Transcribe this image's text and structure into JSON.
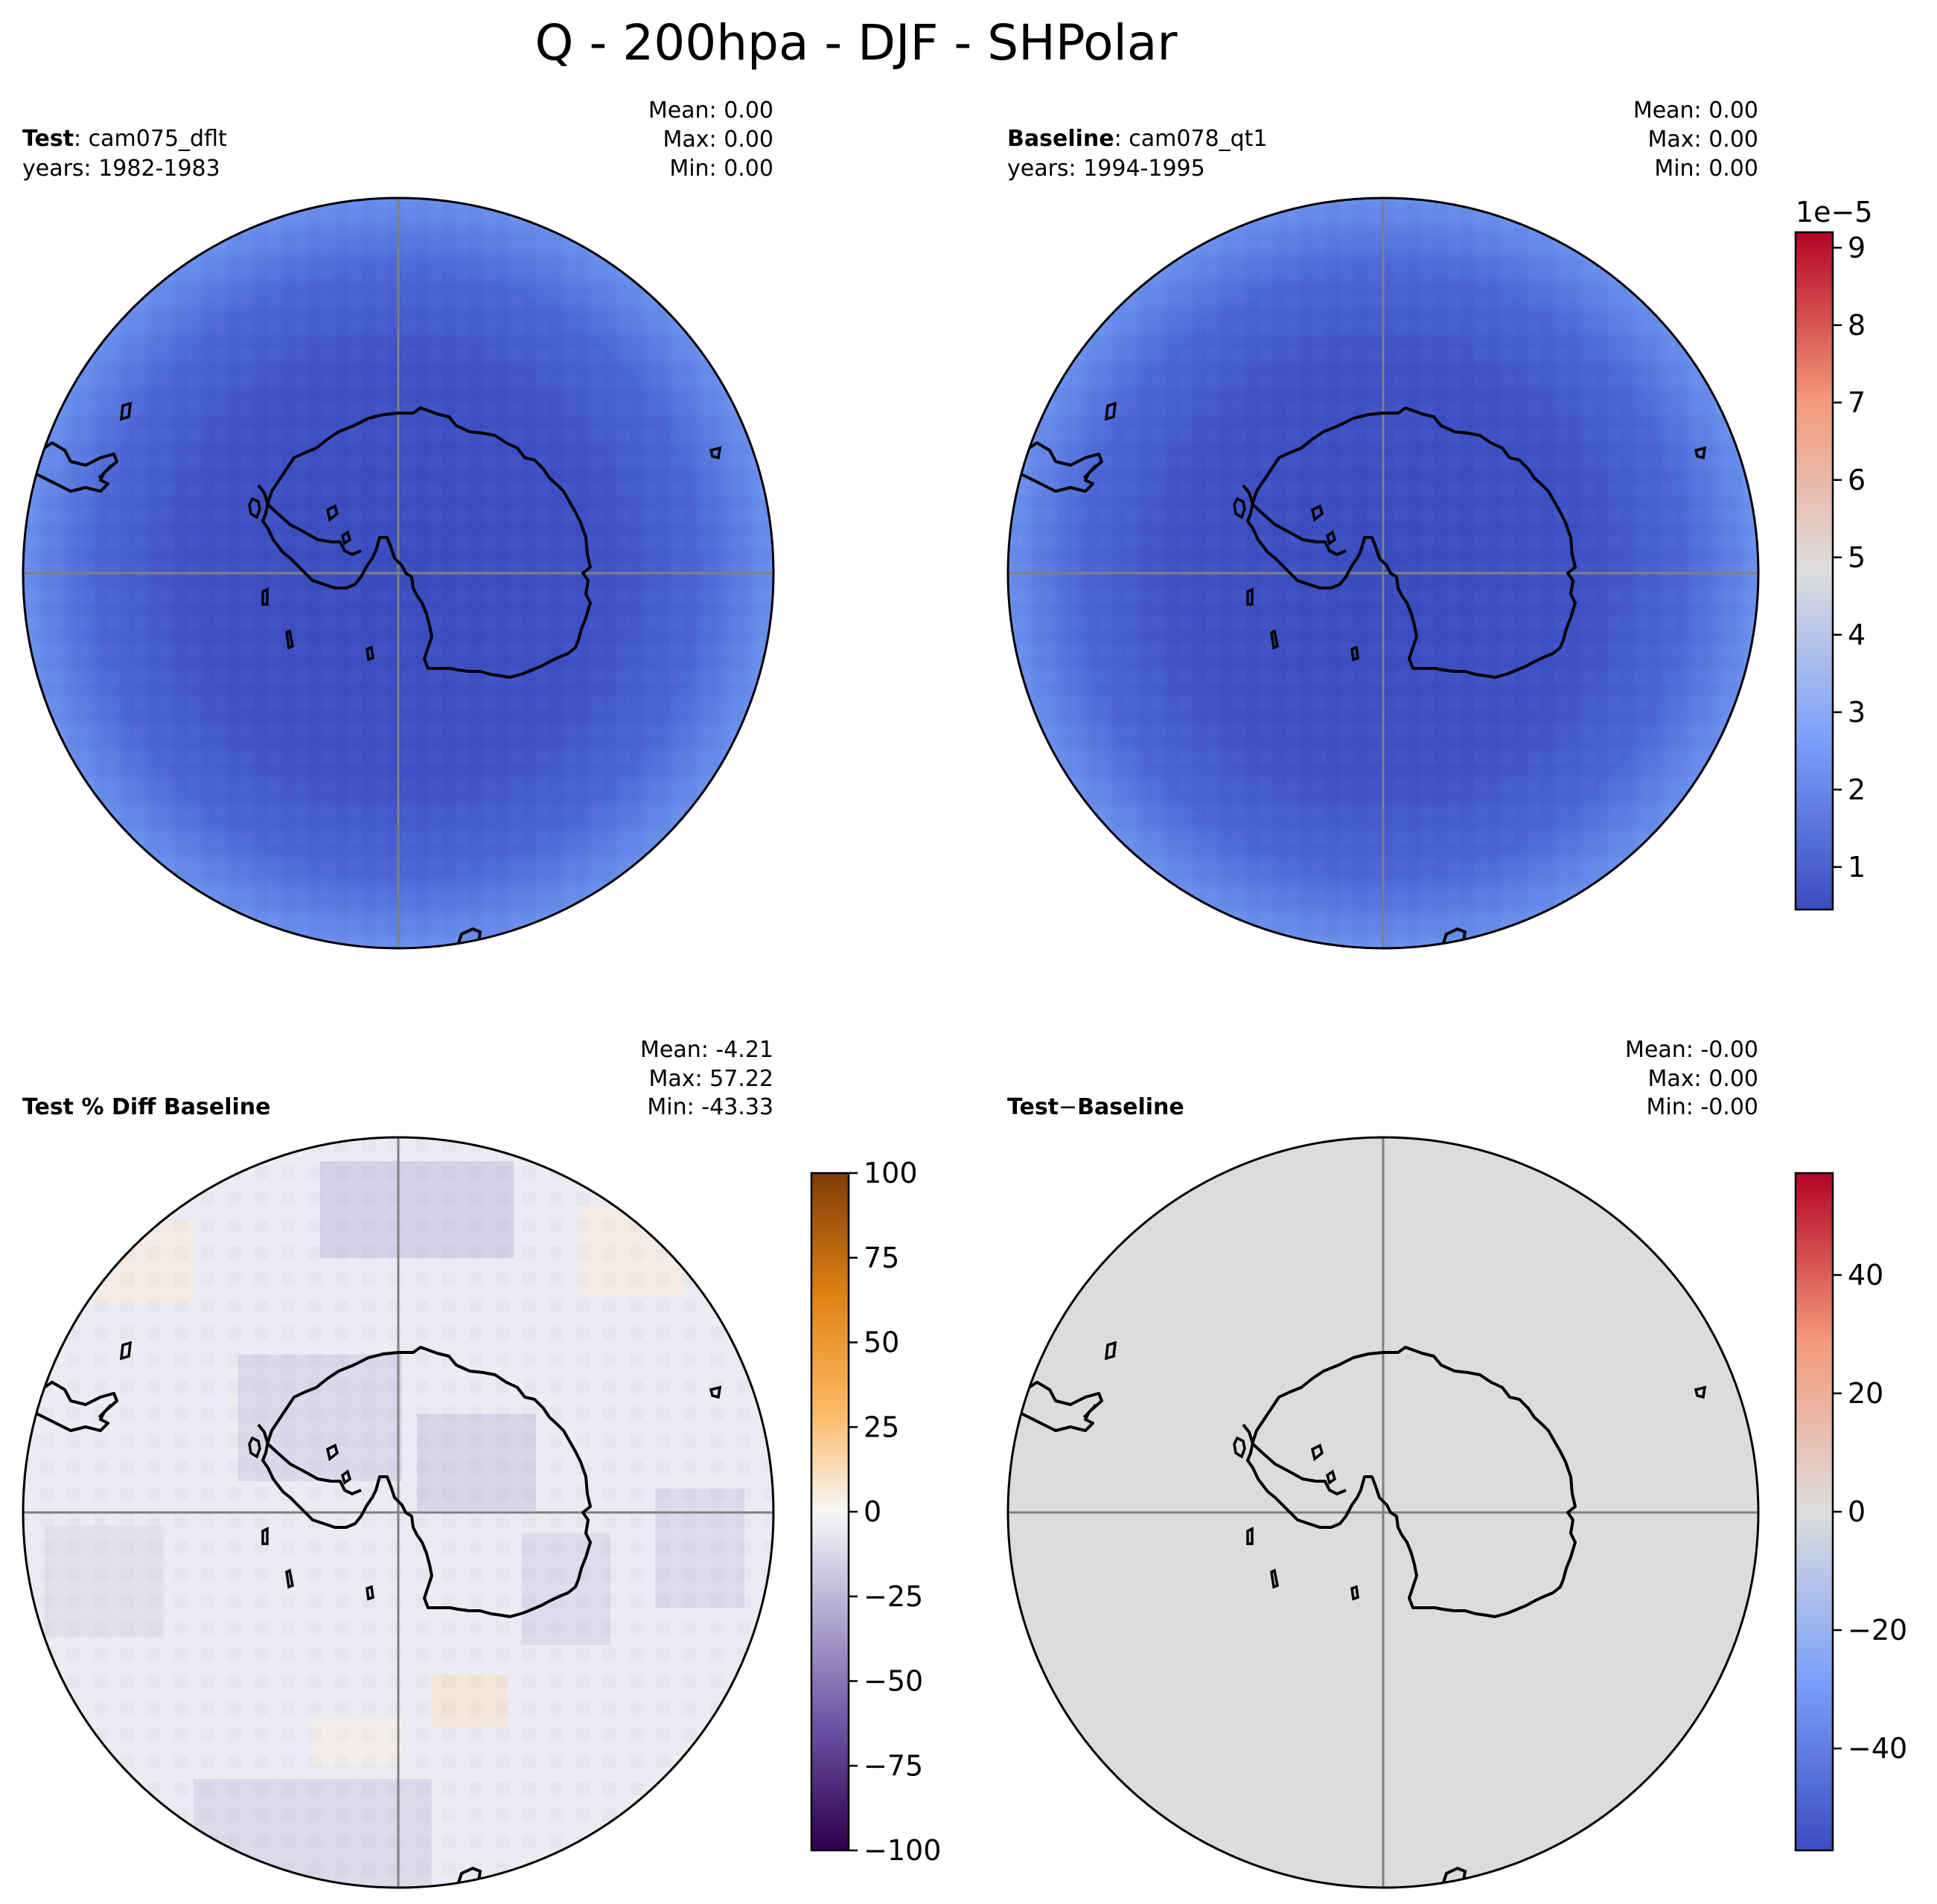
{
  "figure": {
    "title": "Q - 200hpa - DJF - SHPolar"
  },
  "panels": [
    {
      "id": "test",
      "label_bold": "Test",
      "label_rest": ": cam075_dflt",
      "years": "years: 1982-1983",
      "stats": [
        "Mean:  0.00",
        "Max:  0.00",
        "Min:  0.00"
      ],
      "field": "q-test"
    },
    {
      "id": "baseline",
      "label_bold": "Baseline",
      "label_rest": ": cam078_qt1",
      "years": "years: 1994-1995",
      "stats": [
        "Mean:  0.00",
        "Max:  0.00",
        "Min:  0.00"
      ],
      "field": "q-baseline"
    },
    {
      "id": "pct-diff",
      "label_bold": "Test % Diff Baseline",
      "label_rest": "",
      "years": "",
      "stats": [
        "Mean: -4.21",
        "Max: 57.22",
        "Min: -43.33"
      ],
      "field": "pct-diff"
    },
    {
      "id": "diff",
      "label_bold": "Test",
      "label_sep": "−",
      "label_bold2": "Baseline",
      "years": "",
      "stats": [
        "Mean: -0.00",
        "Max:  0.00",
        "Min: -0.00"
      ],
      "field": "abs-diff"
    }
  ],
  "colorbars": [
    {
      "id": "abs",
      "colormap": "coolwarm",
      "range": [
        0.45,
        9.2
      ],
      "offset_label": "1e−5",
      "ticks": [
        {
          "value": 1,
          "label": "1"
        },
        {
          "value": 2,
          "label": "2"
        },
        {
          "value": 3,
          "label": "3"
        },
        {
          "value": 4,
          "label": "4"
        },
        {
          "value": 5,
          "label": "5"
        },
        {
          "value": 6,
          "label": "6"
        },
        {
          "value": 7,
          "label": "7"
        },
        {
          "value": 8,
          "label": "8"
        },
        {
          "value": 9,
          "label": "9"
        }
      ]
    },
    {
      "id": "pct",
      "colormap": "PuOr_r",
      "range": [
        -100,
        100
      ],
      "offset_label": "",
      "ticks": [
        {
          "value": 100,
          "label": "100"
        },
        {
          "value": 75,
          "label": "75"
        },
        {
          "value": 50,
          "label": "50"
        },
        {
          "value": 25,
          "label": "25"
        },
        {
          "value": 0,
          "label": "0"
        },
        {
          "value": -25,
          "label": "−25"
        },
        {
          "value": -50,
          "label": "−50"
        },
        {
          "value": -75,
          "label": "−75"
        },
        {
          "value": -100,
          "label": "−100"
        }
      ]
    },
    {
      "id": "diffbar",
      "colormap": "coolwarm",
      "range": [
        -57.22,
        57.22
      ],
      "offset_label": "",
      "ticks": [
        {
          "value": 40,
          "label": "40"
        },
        {
          "value": 20,
          "label": "20"
        },
        {
          "value": 0,
          "label": "0"
        },
        {
          "value": -20,
          "label": "−20"
        },
        {
          "value": -40,
          "label": "−40"
        }
      ]
    }
  ],
  "colors": {
    "coolwarm_low": "#3b4cc0",
    "coolwarm_mid": "#dddddd",
    "coolwarm_high": "#b40426",
    "puor_low": "#2d004b",
    "puor_mid": "#f7f7f7",
    "puor_high": "#7f3b08",
    "gridline": "#808080",
    "coastline": "#000000"
  }
}
